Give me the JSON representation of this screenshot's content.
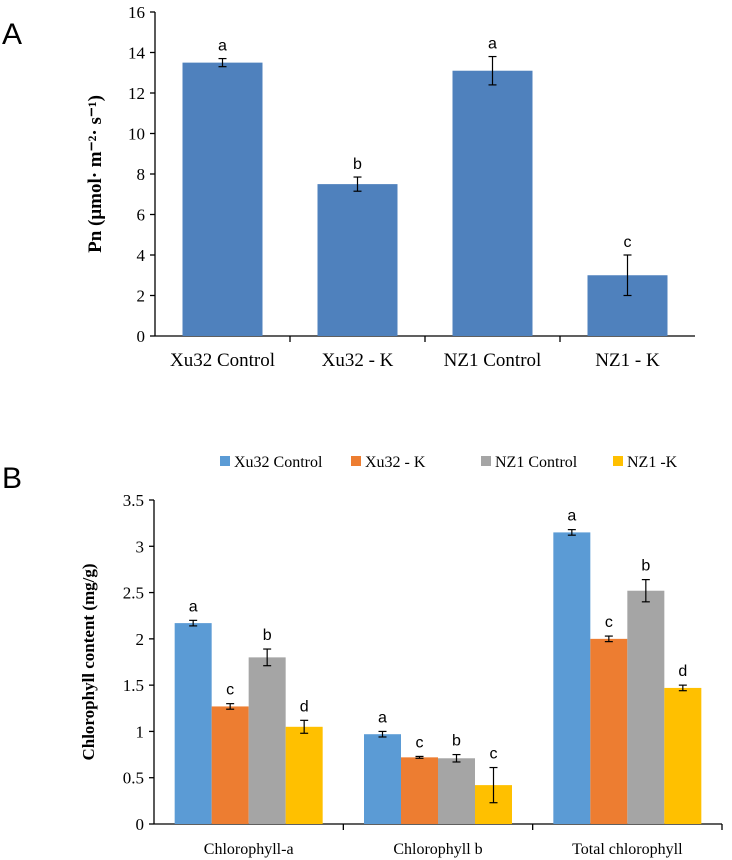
{
  "chart_data": [
    {
      "panel_label": "A",
      "type": "bar",
      "ylabel": "Pn (μmol· m⁻²· s⁻¹)",
      "ylim": [
        0,
        16
      ],
      "yticks": [
        "0",
        "2",
        "4",
        "6",
        "8",
        "10",
        "12",
        "14",
        "16"
      ],
      "categories": [
        "Xu32 Control",
        "Xu32 - K",
        "NZ1 Control",
        "NZ1 - K"
      ],
      "values": [
        13.5,
        7.5,
        13.1,
        3.0
      ],
      "errors": [
        0.2,
        0.35,
        0.7,
        1.0
      ],
      "letters": [
        "a",
        "b",
        "a",
        "c"
      ],
      "color": "#4f81bd"
    },
    {
      "panel_label": "B",
      "type": "bar",
      "ylabel": "Chlorophyll content (mg/g)",
      "ylim": [
        0,
        3.5
      ],
      "yticks": [
        "0",
        "0.5",
        "1",
        "1.5",
        "2",
        "2.5",
        "3",
        "3.5"
      ],
      "categories": [
        "Chlorophyll-a",
        "Chlorophyll b",
        "Total chlorophyll"
      ],
      "series": [
        {
          "name": "Xu32 Control",
          "color": "#5b9bd5",
          "values": [
            2.17,
            0.97,
            3.15
          ],
          "errors": [
            0.03,
            0.03,
            0.03
          ],
          "letters": [
            "a",
            "a",
            "a"
          ]
        },
        {
          "name": "Xu32 - K",
          "color": "#ed7d31",
          "values": [
            1.27,
            0.72,
            2.0
          ],
          "errors": [
            0.03,
            0.01,
            0.03
          ],
          "letters": [
            "c",
            "c",
            "c"
          ]
        },
        {
          "name": "NZ1 Control",
          "color": "#a5a5a5",
          "values": [
            1.8,
            0.71,
            2.52
          ],
          "errors": [
            0.09,
            0.04,
            0.12
          ],
          "letters": [
            "b",
            "b",
            "b"
          ]
        },
        {
          "name": "NZ1 -K",
          "color": "#ffc000",
          "values": [
            1.05,
            0.42,
            1.47
          ],
          "errors": [
            0.07,
            0.19,
            0.03
          ],
          "letters": [
            "d",
            "c",
            "d"
          ]
        }
      ],
      "legend_position": "top"
    }
  ]
}
